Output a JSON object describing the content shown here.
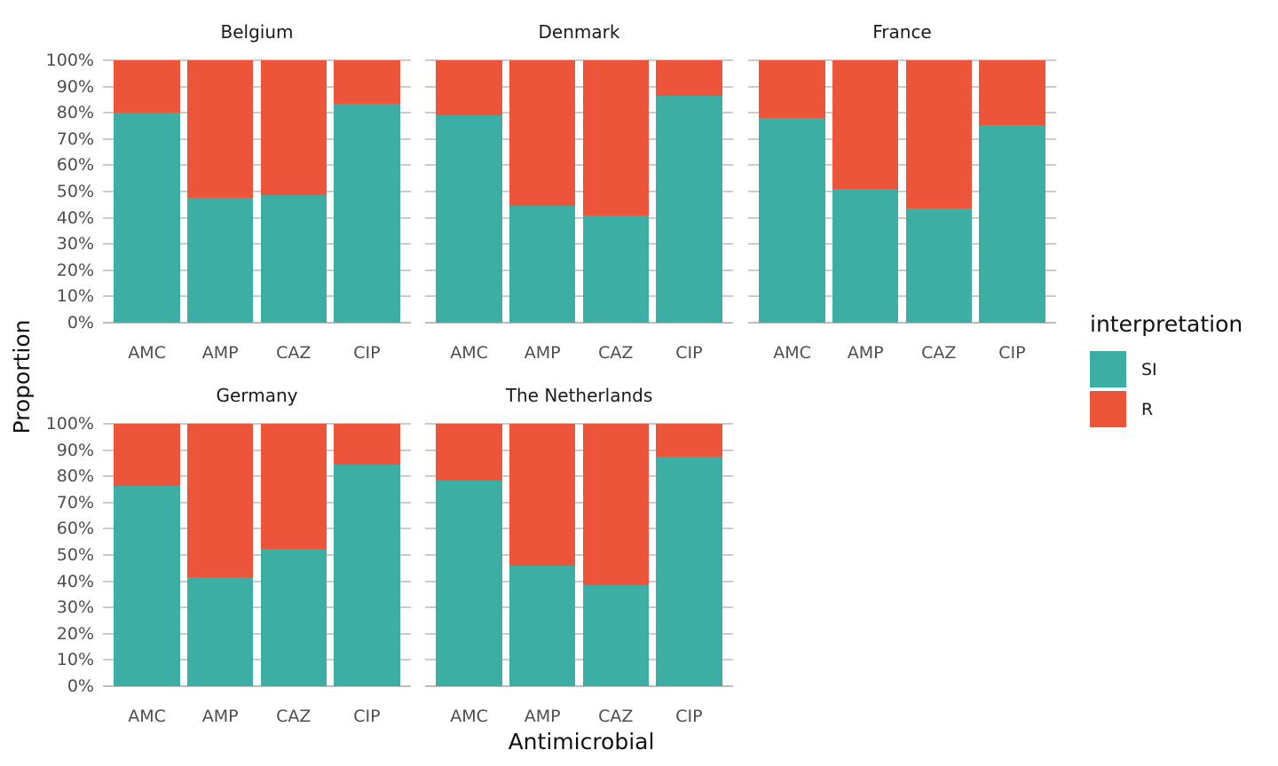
{
  "figure": {
    "y_axis_title": "Proportion",
    "x_axis_title": "Antimicrobial",
    "background_color": "#FFFFFF",
    "gridline_color": "#CBCBCB"
  },
  "legend": {
    "title": "interpretation",
    "position": "right",
    "items": [
      {
        "label": "SI",
        "color": "#3CAEA3"
      },
      {
        "label": "R",
        "color": "#ED553B"
      }
    ]
  },
  "chart_data": {
    "type": "bar",
    "subtype": "stacked-percent",
    "title": "",
    "xlabel": "Antimicrobial",
    "ylabel": "Proportion",
    "categories": [
      "AMC",
      "AMP",
      "CAZ",
      "CIP"
    ],
    "y_tick_labels": [
      "0%",
      "10%",
      "20%",
      "30%",
      "40%",
      "50%",
      "60%",
      "70%",
      "80%",
      "90%",
      "100%"
    ],
    "ylim": [
      0,
      100
    ],
    "grid": true,
    "legend_title": "interpretation",
    "series_names": [
      "SI",
      "R"
    ],
    "series_colors": {
      "SI": "#3CAEA3",
      "R": "#ED553B"
    },
    "facets": [
      {
        "title": "Belgium",
        "series": [
          {
            "name": "SI",
            "values": [
              80,
              47.5,
              48.5,
              83.5
            ]
          },
          {
            "name": "R",
            "values": [
              20,
              52.5,
              51.5,
              16.5
            ]
          }
        ]
      },
      {
        "title": "Denmark",
        "series": [
          {
            "name": "SI",
            "values": [
              79,
              44.5,
              41,
              86.5
            ]
          },
          {
            "name": "R",
            "values": [
              21,
              55.5,
              59,
              13.5
            ]
          }
        ]
      },
      {
        "title": "France",
        "series": [
          {
            "name": "SI",
            "values": [
              78,
              51,
              43.5,
              75.5
            ]
          },
          {
            "name": "R",
            "values": [
              22,
              49,
              56.5,
              24.5
            ]
          }
        ]
      },
      {
        "title": "Germany",
        "series": [
          {
            "name": "SI",
            "values": [
              76.5,
              41.5,
              52.5,
              84.5
            ]
          },
          {
            "name": "R",
            "values": [
              23.5,
              58.5,
              47.5,
              15.5
            ]
          }
        ]
      },
      {
        "title": "The Netherlands",
        "series": [
          {
            "name": "SI",
            "values": [
              78.5,
              46,
              38.5,
              87.5
            ]
          },
          {
            "name": "R",
            "values": [
              21.5,
              54,
              61.5,
              12.5
            ]
          }
        ]
      }
    ]
  }
}
